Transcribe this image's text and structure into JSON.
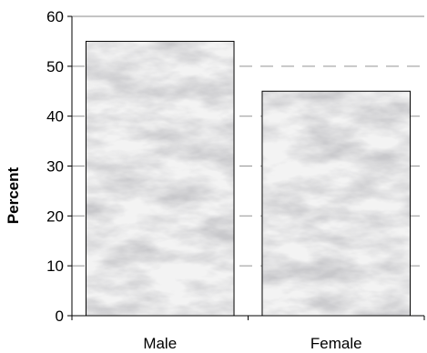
{
  "chart_data": {
    "type": "bar",
    "categories": [
      "Male",
      "Female"
    ],
    "values": [
      55,
      45
    ],
    "title": "",
    "xlabel": "",
    "ylabel": "Percent",
    "ylim": [
      0,
      60
    ],
    "yticks": [
      0,
      10,
      20,
      30,
      40,
      50,
      60
    ],
    "grid": "horizontal-dashed",
    "bar_style": "grey-marble-texture"
  }
}
